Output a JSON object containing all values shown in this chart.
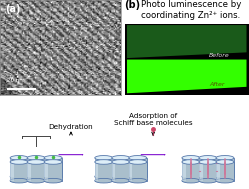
{
  "title_text": "Photo luminescence by\ncoordinating Zn²⁺ ions.",
  "label_a": "(a)",
  "label_b": "(b)",
  "scalebar_text": "20 nm",
  "before_text": "Before",
  "after_text": "After",
  "dehydration_text": "Dehydration",
  "adsorption_text": "Adsorption of\nSchiff base molecules",
  "bg_color": "#ffffff",
  "green_dark": "#1a5a1a",
  "green_bright": "#33ff00",
  "arrow_purple": "#7700cc",
  "cylinder_body": "#aabfcc",
  "cylinder_top": "#ddeef8",
  "cylinder_outline": "#5577aa",
  "schiff_color": "#cc7799",
  "water_color": "#44bb44",
  "label_fontsize": 7,
  "title_fontsize": 6.2
}
